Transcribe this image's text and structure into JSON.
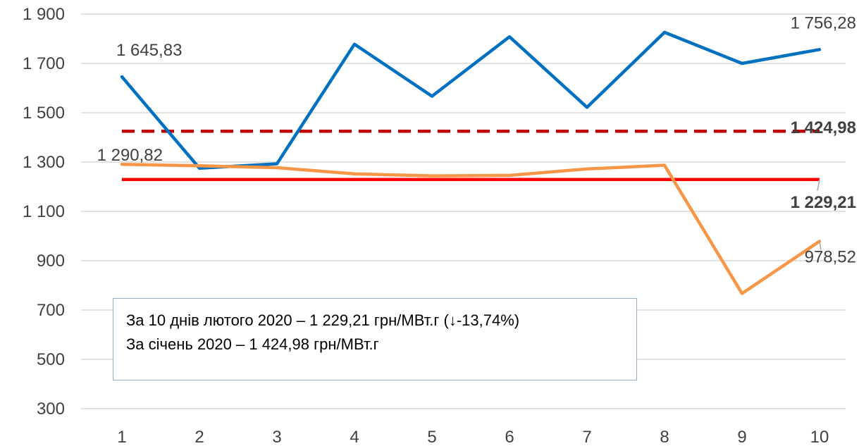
{
  "chart_data": {
    "type": "line",
    "x": [
      "1",
      "2",
      "3",
      "4",
      "5",
      "6",
      "7",
      "8",
      "9",
      "10"
    ],
    "ylim": [
      300,
      1900
    ],
    "yticks": [
      "1 900",
      "1 700",
      "1 500",
      "1 300",
      "1 100",
      "900",
      "700",
      "500",
      "300"
    ],
    "ytick_values": [
      1900,
      1700,
      1500,
      1300,
      1100,
      900,
      700,
      500,
      300
    ],
    "grid": "horizontal",
    "series": [
      {
        "color": "#0070c0",
        "values": [
          1645.83,
          1275,
          1293,
          1778,
          1567,
          1808,
          1522,
          1826,
          1700,
          1756.28
        ]
      },
      {
        "color": "#f79646",
        "values": [
          1290.82,
          1285,
          1277,
          1252,
          1244,
          1246,
          1272,
          1287,
          767,
          978.52
        ]
      }
    ],
    "reference_lines": [
      {
        "value": 1424.98,
        "color": "#c00000",
        "style": "dashed",
        "label": "1 424,98"
      },
      {
        "value": 1229.21,
        "color": "#ff0000",
        "style": "solid",
        "label": "1 229,21"
      }
    ],
    "data_labels": [
      {
        "series": 0,
        "index": 0,
        "text": "1 645,83"
      },
      {
        "series": 0,
        "index": 9,
        "text": "1 756,28"
      },
      {
        "series": 1,
        "index": 0,
        "text": "1 290,82"
      },
      {
        "series": 1,
        "index": 9,
        "text": "978,52"
      }
    ],
    "annotation": {
      "line1": "За 10 днів лютого 2020 – 1 229,21 грн/МВт.г (↓-13,74%)",
      "line2": "За січень 2020 – 1 424,98 грн/МВт.г"
    }
  }
}
